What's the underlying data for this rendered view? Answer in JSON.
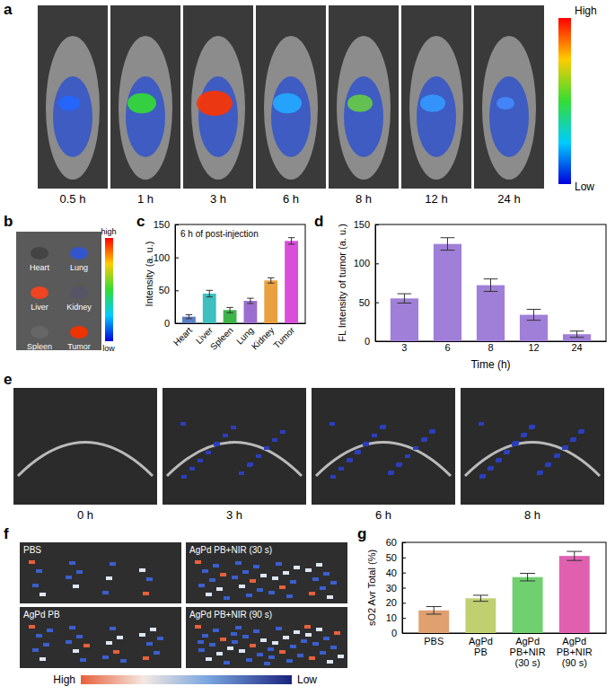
{
  "figure": {
    "panel_labels": [
      "a",
      "b",
      "c",
      "d",
      "e",
      "f",
      "g"
    ],
    "a": {
      "times": [
        "0.5 h",
        "1 h",
        "3 h",
        "6 h",
        "8 h",
        "12 h",
        "24 h"
      ],
      "colorbar": [
        "High",
        "Low"
      ]
    },
    "b": {
      "organs": [
        "Heart",
        "Lung",
        "Liver",
        "Kidney",
        "Spleen",
        "Tumor"
      ],
      "colorbar": [
        "high",
        "low"
      ]
    },
    "e": {
      "times": [
        "0 h",
        "3 h",
        "6 h",
        "8 h"
      ]
    },
    "f": {
      "groups": [
        "PBS",
        "AgPd PB",
        "AgPd PB+NIR (30 s)",
        "AgPd PB+NIR (90 s)"
      ],
      "colorbar": [
        "High",
        "Low"
      ]
    }
  },
  "chart_data": [
    {
      "type": "bar",
      "annotation": "6 h of post-injection",
      "y_label": "Intensity (a. u.)",
      "categories": [
        "Heart",
        "Liver",
        "Spleen",
        "Lung",
        "Kidney",
        "Tumor"
      ],
      "values": [
        10,
        45,
        20,
        34,
        65,
        125
      ],
      "errors": [
        3,
        5,
        4,
        4,
        4,
        5
      ],
      "colors": [
        "#5b7fc4",
        "#3fbfbf",
        "#3db34a",
        "#9b6fcf",
        "#e8a040",
        "#d94fd9"
      ],
      "ylim": [
        0,
        150
      ],
      "yticks": [
        0,
        50,
        100,
        150
      ]
    },
    {
      "type": "bar",
      "x_label": "Time (h)",
      "y_label": "FL Intensity of tumor (a. u.)",
      "categories": [
        "3",
        "6",
        "8",
        "12",
        "24"
      ],
      "values": [
        55,
        125,
        72,
        34,
        9
      ],
      "errors": [
        6,
        8,
        8,
        7,
        4
      ],
      "color": "#a07fd8",
      "ylim": [
        0,
        150
      ],
      "yticks": [
        0,
        50,
        100,
        150
      ]
    },
    {
      "type": "bar",
      "y_label": "sO2 Avr Total (%)",
      "categories": [
        "PBS",
        "AgPd\nPB",
        "AgPd\nPB+NIR\n(30 s)",
        "AgPd\nPB+NIR\n(90 s)"
      ],
      "values": [
        15,
        23,
        37,
        51
      ],
      "errors": [
        2.5,
        2,
        2.5,
        3
      ],
      "colors": [
        "#e0a070",
        "#c0d070",
        "#70d070",
        "#e060b0"
      ],
      "ylim": [
        0,
        60
      ],
      "yticks": [
        0,
        10,
        20,
        30,
        40,
        50,
        60
      ]
    }
  ]
}
